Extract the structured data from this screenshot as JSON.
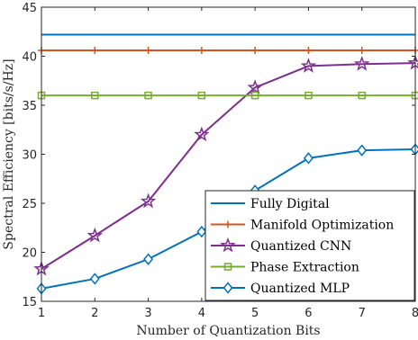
{
  "chart_data": {
    "type": "line",
    "xlabel": "Number of Quantization Bits",
    "ylabel": "Spectral Efficiency [bits/s/Hz]",
    "x": [
      1,
      2,
      3,
      4,
      5,
      6,
      7,
      8
    ],
    "xlim": [
      1,
      8
    ],
    "ylim": [
      15,
      45
    ],
    "xticks": [
      1,
      2,
      3,
      4,
      5,
      6,
      7,
      8
    ],
    "yticks": [
      15,
      20,
      25,
      30,
      35,
      40,
      45
    ],
    "grid": false,
    "legend_position": "bottom-right",
    "series": [
      {
        "name": "Fully Digital",
        "color": "#0072BD",
        "marker": "none",
        "values": [
          42.2,
          42.2,
          42.2,
          42.2,
          42.2,
          42.2,
          42.2,
          42.2
        ]
      },
      {
        "name": "Manifold Optimization",
        "color": "#D95319",
        "marker": "plus",
        "values": [
          40.6,
          40.6,
          40.6,
          40.6,
          40.6,
          40.6,
          40.6,
          40.6
        ]
      },
      {
        "name": "Quantized CNN",
        "color": "#7E2F8E",
        "marker": "star",
        "values": [
          18.3,
          21.7,
          25.2,
          32.0,
          36.8,
          39.0,
          39.2,
          39.3
        ]
      },
      {
        "name": "Phase Extraction",
        "color": "#77AC30",
        "marker": "square",
        "values": [
          36.0,
          36.0,
          36.0,
          36.0,
          36.0,
          36.0,
          36.0,
          36.0
        ]
      },
      {
        "name": "Quantized MLP",
        "color": "#0072BD",
        "marker": "diamond",
        "values": [
          16.3,
          17.3,
          19.3,
          22.1,
          26.3,
          29.6,
          30.4,
          30.5
        ]
      }
    ]
  }
}
